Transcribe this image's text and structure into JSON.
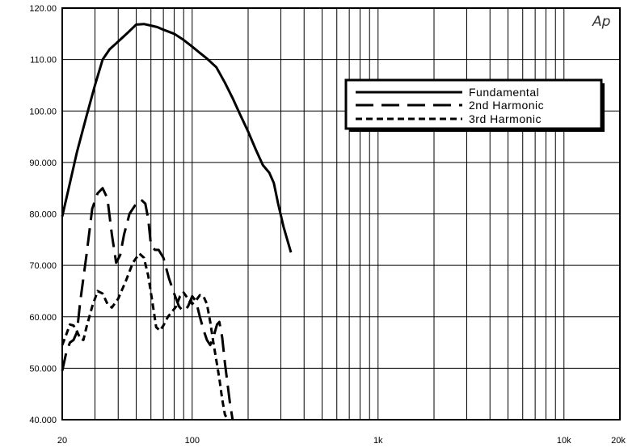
{
  "chart_data": {
    "type": "line",
    "x_scale": "log",
    "xlim": [
      20,
      20000
    ],
    "ylim": [
      40,
      120
    ],
    "grid": true,
    "legend_position": "top-right",
    "logo_text": "Ap",
    "x_ticks": [
      {
        "value": 20,
        "label": "20"
      },
      {
        "value": 100,
        "label": "100"
      },
      {
        "value": 1000,
        "label": "1k"
      },
      {
        "value": 10000,
        "label": "10k"
      },
      {
        "value": 20000,
        "label": "20k"
      }
    ],
    "y_ticks": [
      {
        "value": 40,
        "label": "40.000"
      },
      {
        "value": 50,
        "label": "50.000"
      },
      {
        "value": 60,
        "label": "60.000"
      },
      {
        "value": 70,
        "label": "70.000"
      },
      {
        "value": 80,
        "label": "80.000"
      },
      {
        "value": 90,
        "label": "90.000"
      },
      {
        "value": 100,
        "label": "100.00"
      },
      {
        "value": 110,
        "label": "110.00"
      },
      {
        "value": 120,
        "label": "120.00"
      }
    ],
    "series": [
      {
        "name": "Fundamental",
        "dash": "solid",
        "points": [
          [
            20,
            79.5
          ],
          [
            22,
            86
          ],
          [
            24,
            92
          ],
          [
            27,
            99
          ],
          [
            30,
            105
          ],
          [
            33,
            110
          ],
          [
            36,
            112
          ],
          [
            40,
            113.5
          ],
          [
            45,
            115.2
          ],
          [
            50,
            116.8
          ],
          [
            55,
            116.9
          ],
          [
            60,
            116.6
          ],
          [
            65,
            116.3
          ],
          [
            70,
            115.8
          ],
          [
            80,
            115
          ],
          [
            90,
            113.8
          ],
          [
            100,
            112.5
          ],
          [
            110,
            111.3
          ],
          [
            120,
            110.2
          ],
          [
            135,
            108.5
          ],
          [
            150,
            105.5
          ],
          [
            165,
            102.5
          ],
          [
            180,
            99.5
          ],
          [
            200,
            96
          ],
          [
            220,
            92.5
          ],
          [
            240,
            89.5
          ],
          [
            260,
            88
          ],
          [
            275,
            86
          ],
          [
            290,
            82
          ],
          [
            310,
            77.5
          ],
          [
            340,
            72.5
          ]
        ]
      },
      {
        "name": "2nd Harmonic",
        "dash": "long",
        "points": [
          [
            20,
            49.5
          ],
          [
            21,
            53
          ],
          [
            22,
            55
          ],
          [
            23,
            55.5
          ],
          [
            24,
            57
          ],
          [
            25,
            63
          ],
          [
            27,
            72
          ],
          [
            29,
            81
          ],
          [
            31,
            84
          ],
          [
            33,
            85
          ],
          [
            35,
            83
          ],
          [
            37,
            76
          ],
          [
            39,
            70.5
          ],
          [
            41,
            72
          ],
          [
            43,
            76
          ],
          [
            46,
            80
          ],
          [
            50,
            82
          ],
          [
            53,
            82.8
          ],
          [
            56,
            82
          ],
          [
            58,
            79
          ],
          [
            60,
            74
          ],
          [
            63,
            73
          ],
          [
            66,
            73
          ],
          [
            70,
            71.5
          ],
          [
            75,
            67.5
          ],
          [
            80,
            64.5
          ],
          [
            85,
            62
          ],
          [
            90,
            61
          ],
          [
            95,
            62
          ],
          [
            100,
            64
          ],
          [
            105,
            63
          ],
          [
            110,
            60
          ],
          [
            115,
            57.5
          ],
          [
            120,
            55.5
          ],
          [
            125,
            54.5
          ],
          [
            130,
            56
          ],
          [
            136,
            58.5
          ],
          [
            140,
            59
          ],
          [
            145,
            56
          ],
          [
            150,
            51
          ],
          [
            155,
            47
          ],
          [
            160,
            43
          ],
          [
            165,
            40
          ]
        ]
      },
      {
        "name": "3rd Harmonic",
        "dash": "short",
        "points": [
          [
            20,
            54.5
          ],
          [
            21,
            56.5
          ],
          [
            22,
            58.5
          ],
          [
            23,
            58.3
          ],
          [
            24,
            57.2
          ],
          [
            25,
            55.8
          ],
          [
            26,
            55.5
          ],
          [
            27,
            58
          ],
          [
            29,
            62
          ],
          [
            31,
            65
          ],
          [
            33,
            64.5
          ],
          [
            35,
            62.5
          ],
          [
            37,
            61.8
          ],
          [
            40,
            63.5
          ],
          [
            44,
            67
          ],
          [
            48,
            70.5
          ],
          [
            52,
            72.3
          ],
          [
            55,
            71.5
          ],
          [
            58,
            68
          ],
          [
            61,
            63
          ],
          [
            64,
            58
          ],
          [
            67,
            57.3
          ],
          [
            70,
            58.3
          ],
          [
            74,
            60
          ],
          [
            78,
            61
          ],
          [
            82,
            62
          ],
          [
            86,
            64
          ],
          [
            90,
            64.7
          ],
          [
            95,
            63.5
          ],
          [
            100,
            62.5
          ],
          [
            105,
            63.2
          ],
          [
            110,
            64.2
          ],
          [
            115,
            64
          ],
          [
            120,
            62.5
          ],
          [
            125,
            59
          ],
          [
            130,
            55
          ],
          [
            135,
            51.5
          ],
          [
            140,
            48
          ],
          [
            145,
            44
          ],
          [
            150,
            41
          ],
          [
            155,
            40
          ]
        ]
      }
    ]
  }
}
